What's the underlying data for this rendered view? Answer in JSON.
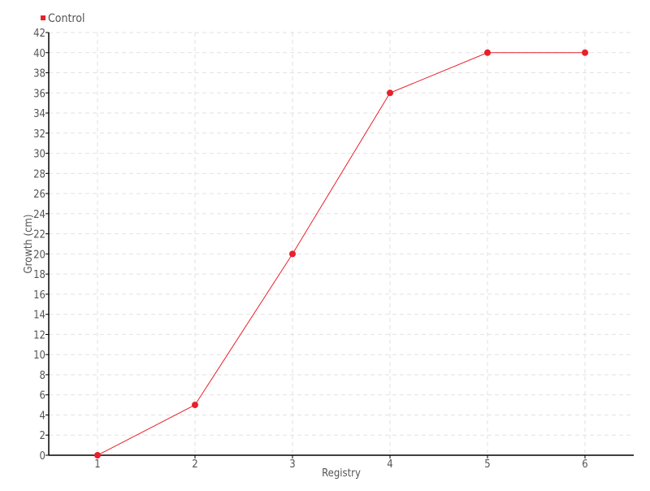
{
  "chart_data": {
    "type": "line",
    "title": "",
    "xlabel": "Registry",
    "ylabel": "Growth (cm)",
    "x": [
      1,
      2,
      3,
      4,
      5,
      6
    ],
    "series": [
      {
        "name": "Control",
        "values": [
          0,
          5,
          20,
          36,
          40,
          40
        ],
        "color": "#e8202a"
      }
    ],
    "xlim": [
      0.5,
      6.5
    ],
    "ylim": [
      0,
      42
    ],
    "xticks": [
      1,
      2,
      3,
      4,
      5,
      6
    ],
    "yticks": [
      0,
      2,
      4,
      6,
      8,
      10,
      12,
      14,
      16,
      18,
      20,
      22,
      24,
      26,
      28,
      30,
      32,
      34,
      36,
      38,
      40,
      42
    ],
    "grid": true,
    "legend": "top-left"
  }
}
